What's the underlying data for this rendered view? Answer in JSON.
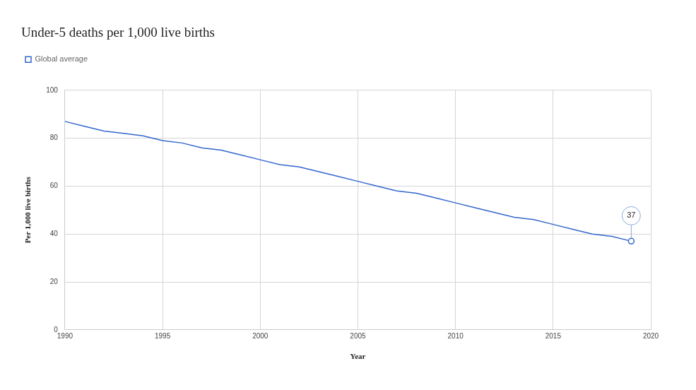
{
  "chart_data": {
    "type": "line",
    "title": "Under-5 deaths per 1,000 live births",
    "x_label": "Year",
    "y_label": "Per 1,000 live births",
    "x": [
      1990,
      1991,
      1992,
      1993,
      1994,
      1995,
      1996,
      1997,
      1998,
      1999,
      2000,
      2001,
      2002,
      2003,
      2004,
      2005,
      2006,
      2007,
      2008,
      2009,
      2010,
      2011,
      2012,
      2013,
      2014,
      2015,
      2016,
      2017,
      2018,
      2019
    ],
    "series": [
      {
        "name": "Global average",
        "color": "#3366cc",
        "values": [
          87,
          85,
          83,
          82,
          81,
          79,
          78,
          76,
          75,
          73,
          71,
          69,
          68,
          66,
          64,
          62,
          60,
          58,
          57,
          55,
          53,
          51,
          49,
          47,
          46,
          44,
          42,
          40,
          39,
          37
        ]
      }
    ],
    "xlim": [
      1990,
      2020
    ],
    "xticks": [
      1990,
      1995,
      2000,
      2005,
      2010,
      2015,
      2020
    ],
    "ylim": [
      0,
      100
    ],
    "yticks": [
      0,
      20,
      40,
      60,
      80,
      100
    ],
    "grid": true,
    "legend": "top-left",
    "annotations": [
      {
        "x": 2019,
        "y": 37,
        "text": "37"
      }
    ]
  }
}
